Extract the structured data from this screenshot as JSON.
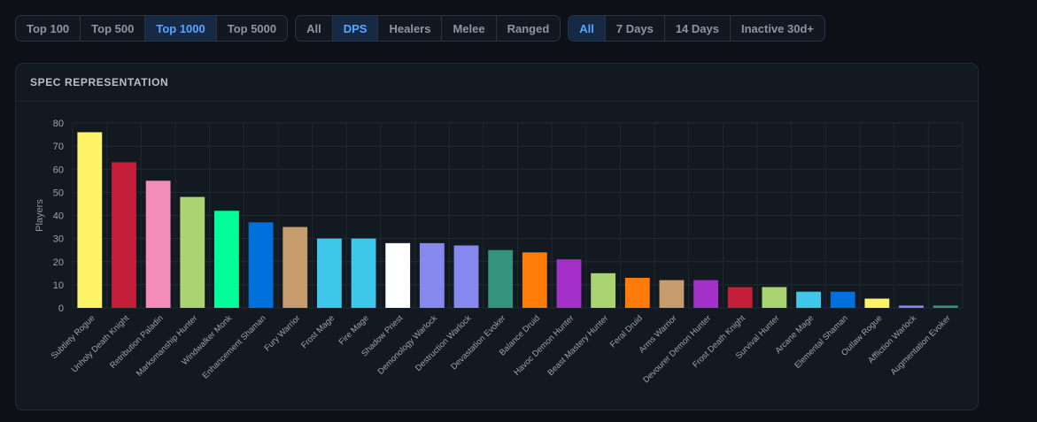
{
  "filters": {
    "top": [
      {
        "label": "Top 100",
        "active": false
      },
      {
        "label": "Top 500",
        "active": false
      },
      {
        "label": "Top 1000",
        "active": true
      },
      {
        "label": "Top 5000",
        "active": false
      }
    ],
    "role": [
      {
        "label": "All",
        "active": false
      },
      {
        "label": "DPS",
        "active": true
      },
      {
        "label": "Healers",
        "active": false
      },
      {
        "label": "Melee",
        "active": false
      },
      {
        "label": "Ranged",
        "active": false
      }
    ],
    "time": [
      {
        "label": "All",
        "active": true
      },
      {
        "label": "7 Days",
        "active": false
      },
      {
        "label": "14 Days",
        "active": false
      },
      {
        "label": "Inactive 30d+",
        "active": false
      }
    ]
  },
  "panel": {
    "title": "SPEC REPRESENTATION"
  },
  "chart_data": {
    "type": "bar",
    "title": "SPEC REPRESENTATION",
    "xlabel": "",
    "ylabel": "Players",
    "ylim": [
      0,
      80
    ],
    "yticks": [
      0,
      10,
      20,
      30,
      40,
      50,
      60,
      70,
      80
    ],
    "grid": true,
    "categories": [
      "Subtlety Rogue",
      "Unholy Death Knight",
      "Retribution Paladin",
      "Marksmanship Hunter",
      "Windwalker Monk",
      "Enhancement Shaman",
      "Fury Warrior",
      "Frost Mage",
      "Fire Mage",
      "Shadow Priest",
      "Demonology Warlock",
      "Destruction Warlock",
      "Devastation Evoker",
      "Balance Druid",
      "Havoc Demon Hunter",
      "Beast Mastery Hunter",
      "Feral Druid",
      "Arms Warrior",
      "Devourer Demon Hunter",
      "Frost Death Knight",
      "Survival Hunter",
      "Arcane Mage",
      "Elemental Shaman",
      "Outlaw Rogue",
      "Affliction Warlock",
      "Augmentation Evoker"
    ],
    "values": [
      76,
      63,
      55,
      48,
      42,
      37,
      35,
      30,
      30,
      28,
      28,
      27,
      25,
      24,
      21,
      15,
      13,
      12,
      12,
      9,
      9,
      7,
      7,
      4,
      1,
      1
    ],
    "colors": [
      "#fff468",
      "#c41e3a",
      "#f48cba",
      "#aad372",
      "#00ff98",
      "#0070dd",
      "#c69b6d",
      "#3fc7eb",
      "#3fc7eb",
      "#ffffff",
      "#8788ee",
      "#8788ee",
      "#33937f",
      "#ff7c0a",
      "#a330c9",
      "#aad372",
      "#ff7c0a",
      "#c69b6d",
      "#a330c9",
      "#c41e3a",
      "#aad372",
      "#3fc7eb",
      "#0070dd",
      "#fff468",
      "#8788ee",
      "#33937f"
    ]
  }
}
